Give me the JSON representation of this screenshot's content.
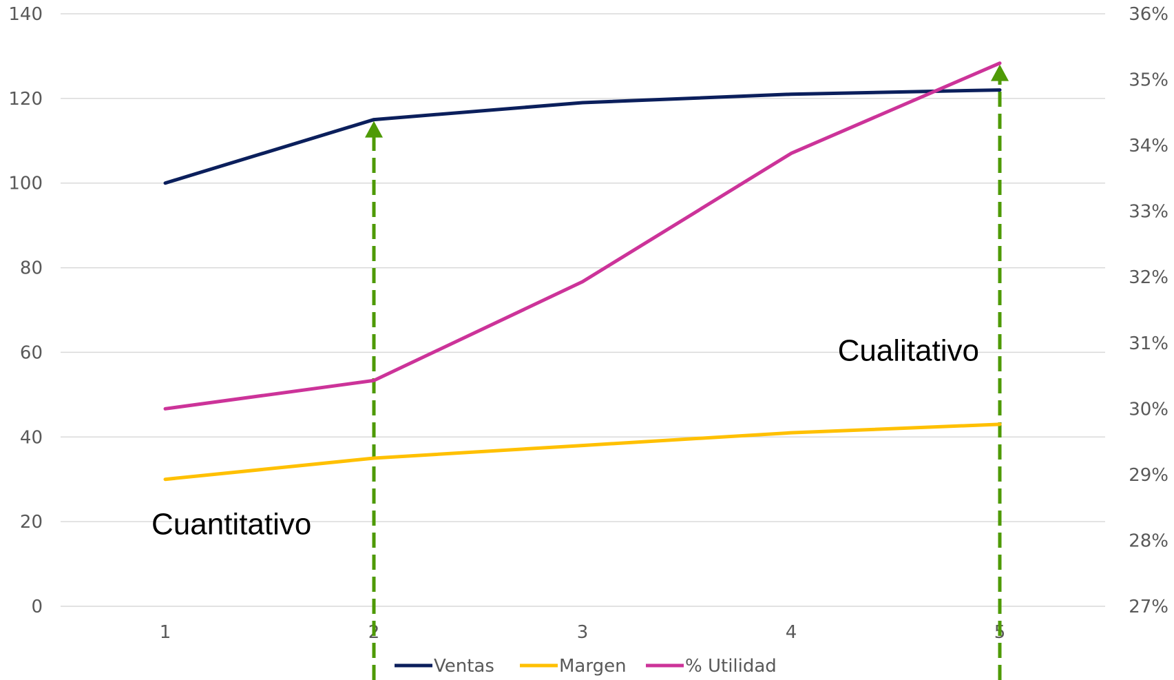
{
  "chart_data": {
    "type": "line",
    "categories": [
      "1",
      "2",
      "3",
      "4",
      "5"
    ],
    "series": [
      {
        "name": "Ventas",
        "axis": "left",
        "color": "#0b1f5c",
        "values": [
          100,
          115,
          119,
          121,
          122
        ]
      },
      {
        "name": "Margen",
        "axis": "left",
        "color": "#ffc000",
        "values": [
          30,
          35,
          38,
          41,
          43
        ]
      },
      {
        "name": "% Utilidad",
        "axis": "right",
        "color": "#cc3399",
        "values": [
          30.0,
          30.43,
          31.93,
          33.88,
          35.25
        ]
      }
    ],
    "y_left": {
      "min": 0,
      "max": 140,
      "step": 20,
      "tick_labels": [
        "0",
        "20",
        "40",
        "60",
        "80",
        "100",
        "120",
        "140"
      ]
    },
    "y_right": {
      "min": 27,
      "max": 36,
      "step": 1,
      "unit": "%",
      "tick_labels": [
        "27%",
        "28%",
        "29%",
        "30%",
        "31%",
        "32%",
        "33%",
        "34%",
        "35%",
        "36%"
      ]
    },
    "grid": true,
    "legend": {
      "position": "bottom",
      "entries": [
        "Ventas",
        "Margen",
        "% Utilidad"
      ]
    },
    "annotations": [
      {
        "text": "Cuantitativo",
        "category": "1",
        "y_value": 17
      },
      {
        "text": "Cualitativo",
        "category": "5",
        "y_value": 58
      }
    ],
    "arrows": [
      {
        "category": "2",
        "to_series": "Ventas",
        "color": "#4e9a06"
      },
      {
        "category": "5",
        "to_series": "% Utilidad",
        "color": "#4e9a06"
      }
    ]
  }
}
